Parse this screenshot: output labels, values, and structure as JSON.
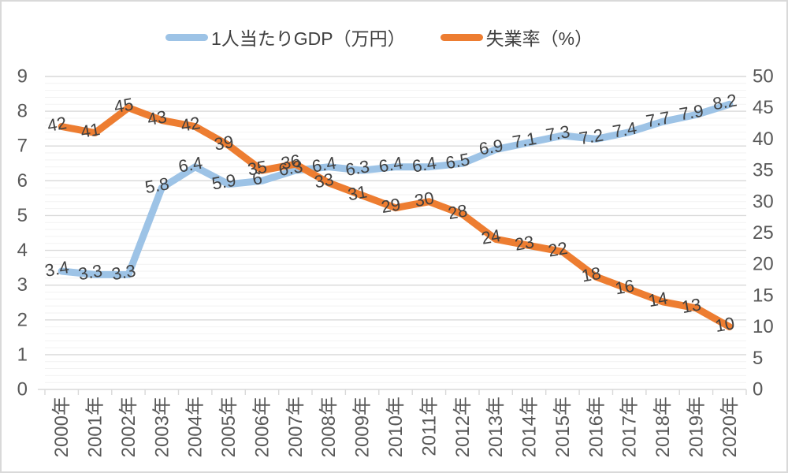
{
  "chart_data": {
    "type": "line",
    "title": "",
    "categories": [
      "2000年",
      "2001年",
      "2002年",
      "2003年",
      "2004年",
      "2005年",
      "2006年",
      "2007年",
      "2008年",
      "2009年",
      "2010年",
      "2011年",
      "2012年",
      "2013年",
      "2014年",
      "2015年",
      "2016年",
      "2017年",
      "2018年",
      "2019年",
      "2020年"
    ],
    "series": [
      {
        "name": "1人当たりGDP（万円）",
        "axis": "left",
        "color": "#9DC3E6",
        "values": [
          3.4,
          3.3,
          3.3,
          5.8,
          6.4,
          5.9,
          6,
          6.3,
          6.4,
          6.3,
          6.4,
          6.4,
          6.5,
          6.9,
          7.1,
          7.3,
          7.2,
          7.4,
          7.7,
          7.9,
          8.2
        ]
      },
      {
        "name": "失業率（%）",
        "axis": "right",
        "color": "#ED7D31",
        "values": [
          42,
          41,
          45,
          43,
          42,
          39,
          35,
          36,
          33,
          31,
          29,
          30,
          28,
          24,
          23,
          22,
          18,
          16,
          14,
          13,
          10
        ]
      }
    ],
    "left_axis": {
      "min": 0,
      "max": 9,
      "major_step": 1,
      "minor_step": 0.2,
      "ticks": [
        0,
        1,
        2,
        3,
        4,
        5,
        6,
        7,
        8,
        9
      ]
    },
    "right_axis": {
      "min": 0,
      "max": 50,
      "major_step": 5,
      "ticks": [
        0,
        5,
        10,
        15,
        20,
        25,
        30,
        35,
        40,
        45,
        50
      ]
    },
    "grid": {
      "major_color": "#D9D9D9",
      "minor_color": "#F2F2F2",
      "axis_line_color": "#D9D9D9",
      "minor_on": true
    },
    "legend_position": "top",
    "data_labels": true,
    "text_colors": {
      "axis": "#595959",
      "data_label": "#404040",
      "legend": "#404040"
    }
  }
}
